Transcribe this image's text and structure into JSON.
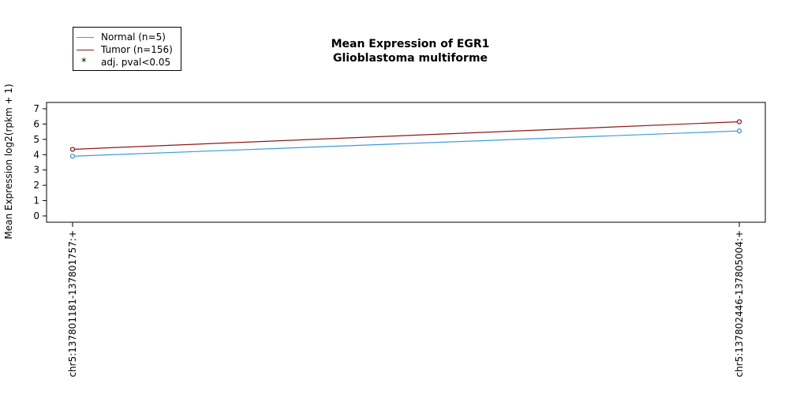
{
  "chart_data": {
    "type": "line",
    "title": "Mean Expression of EGR1",
    "subtitle": "Glioblastoma multiforme",
    "ylabel": "Mean Expression log2(rpkm + 1)",
    "xlabel": "",
    "categories": [
      "chr5:137801181-137801757:+",
      "chr5:137802446-137805004:+"
    ],
    "ylim": [
      0,
      7
    ],
    "yticks": [
      0,
      1,
      2,
      3,
      4,
      5,
      6,
      7
    ],
    "grid": false,
    "legend_position": "top-left",
    "series": [
      {
        "name": "Normal (n=5)",
        "values": [
          3.9,
          5.55
        ],
        "color": "#3a9bdc"
      },
      {
        "name": "Tumor (n=156)",
        "values": [
          4.35,
          6.15
        ],
        "color": "#8b1a1a"
      }
    ],
    "legend_entries": [
      {
        "label": "Normal (n=5)",
        "symbol": "line",
        "color": "#3a9bdc"
      },
      {
        "label": "Tumor (n=156)",
        "symbol": "line",
        "color": "#8b1a1a"
      },
      {
        "label": "adj. pval<0.05",
        "symbol": "*",
        "color": "#000000"
      }
    ]
  }
}
